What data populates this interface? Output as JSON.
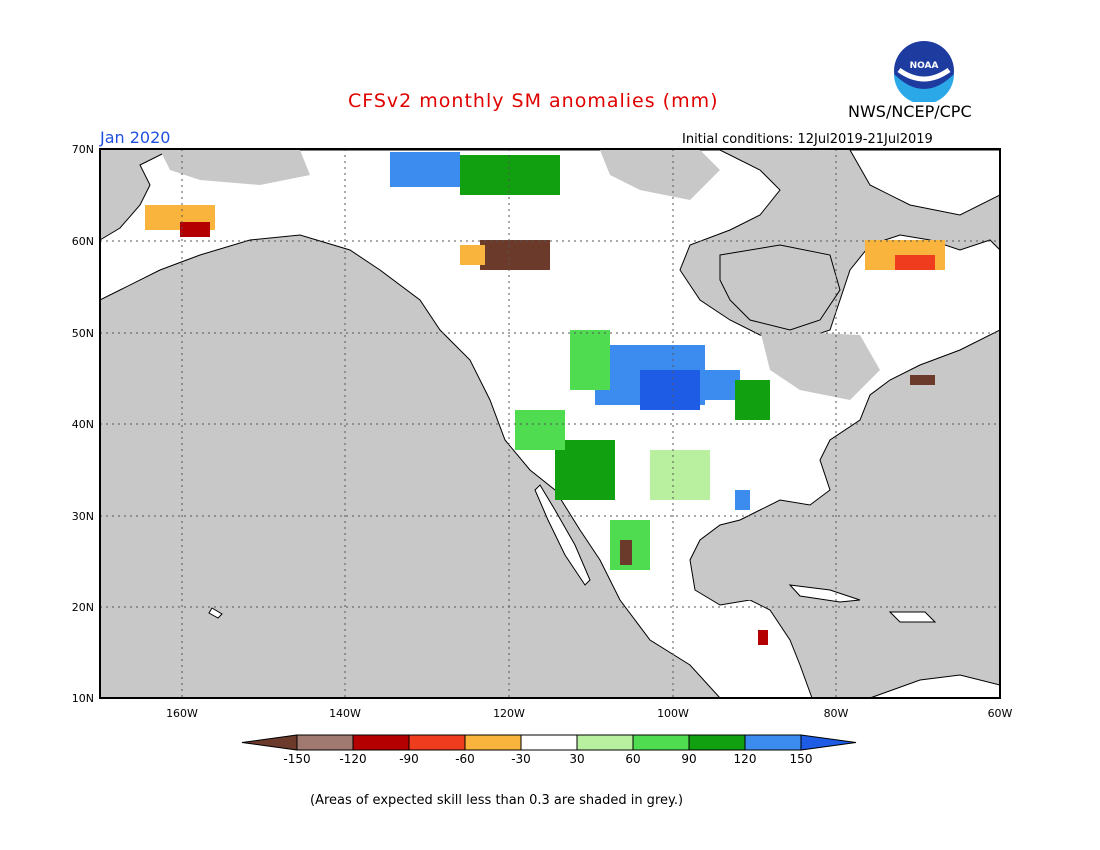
{
  "header": {
    "title": "CFSv2 monthly SM anomalies (mm)",
    "agency": "NWS/NCEP/CPC",
    "valid_month": "Jan 2020",
    "initial_conditions": "Initial conditions: 12Jul2019-21Jul2019",
    "logo_text": "NOAA"
  },
  "footnote": "(Areas of expected skill less than 0.3 are shaded in grey.)",
  "map": {
    "lat_labels": [
      "70N",
      "60N",
      "50N",
      "40N",
      "30N",
      "20N",
      "10N"
    ],
    "lon_labels": [
      "160W",
      "140W",
      "120W",
      "100W",
      "80W",
      "60W"
    ],
    "colors": {
      "ocean": "#c8c8c8",
      "land": "#ffffff",
      "grid": "#555555"
    }
  },
  "colorbar": {
    "ticks": [
      "-150",
      "-120",
      "-90",
      "-60",
      "-30",
      "30",
      "60",
      "90",
      "120",
      "150"
    ],
    "colors": [
      "#6b3a2a",
      "#a07a70",
      "#b40000",
      "#f03c1e",
      "#f8b43c",
      "#ffffff",
      "#b8f0a0",
      "#50dc50",
      "#10a010",
      "#3c8cf0",
      "#1e5ce6"
    ]
  },
  "anomaly_regions": [
    {
      "name": "northern-plains-wet",
      "color": "#3c8cf0"
    },
    {
      "name": "rockies-wet",
      "color": "#50dc50"
    },
    {
      "name": "alaska-dry",
      "color": "#f8b43c"
    },
    {
      "name": "quebec-dry",
      "color": "#f03c1e"
    }
  ]
}
